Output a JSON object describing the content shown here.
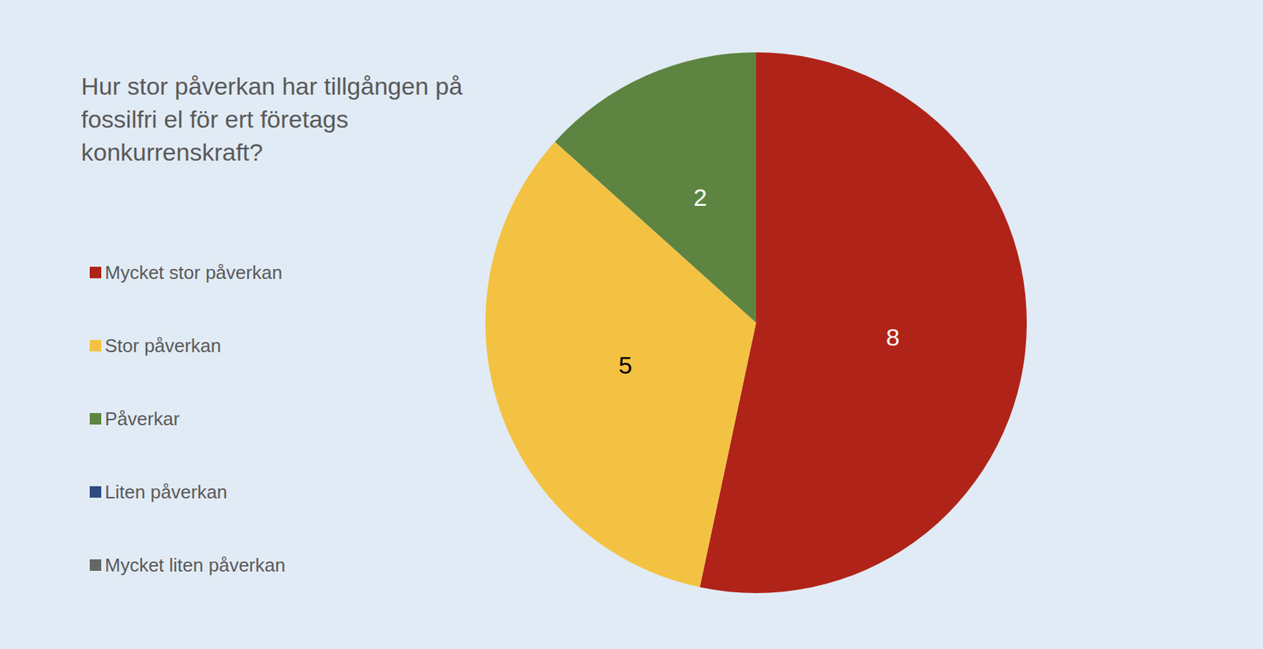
{
  "chart_data": {
    "type": "pie",
    "title": "Hur stor påverkan har tillgången på fossilfri el för ert företags konkurrenskraft?",
    "categories": [
      "Mycket stor påverkan",
      "Stor påverkan",
      "Påverkar",
      "Liten påverkan",
      "Mycket liten påverkan"
    ],
    "values": [
      8,
      5,
      2,
      null,
      null
    ],
    "colors": [
      "#b02318",
      "#f4c242",
      "#5e8441",
      "#2e4a7e",
      "#666666"
    ],
    "data_labels": true,
    "legend": "left"
  }
}
